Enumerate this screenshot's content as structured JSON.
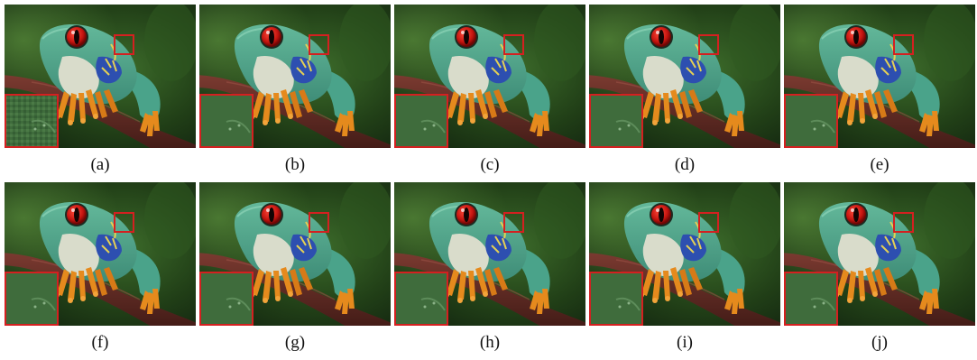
{
  "figure": {
    "panels": [
      {
        "label": "(a)",
        "inset": "coarse"
      },
      {
        "label": "(b)",
        "inset": "smooth"
      },
      {
        "label": "(c)",
        "inset": "smooth"
      },
      {
        "label": "(d)",
        "inset": "smooth"
      },
      {
        "label": "(e)",
        "inset": "smooth"
      },
      {
        "label": "(f)",
        "inset": "smooth"
      },
      {
        "label": "(g)",
        "inset": "smooth"
      },
      {
        "label": "(h)",
        "inset": "smooth"
      },
      {
        "label": "(i)",
        "inset": "smooth"
      },
      {
        "label": "(j)",
        "inset": "smooth"
      }
    ],
    "colors": {
      "zoom_box": "#d42020",
      "background_dark": "#0f1f0e",
      "background_green": "#3c6b2a",
      "frog_body": "#4aa38a",
      "frog_belly": "#d9dccb",
      "frog_eye": "#c4140f",
      "frog_flank": "#2d4fb0",
      "frog_feet": "#e58a1d",
      "branch": "#5a2621"
    }
  }
}
